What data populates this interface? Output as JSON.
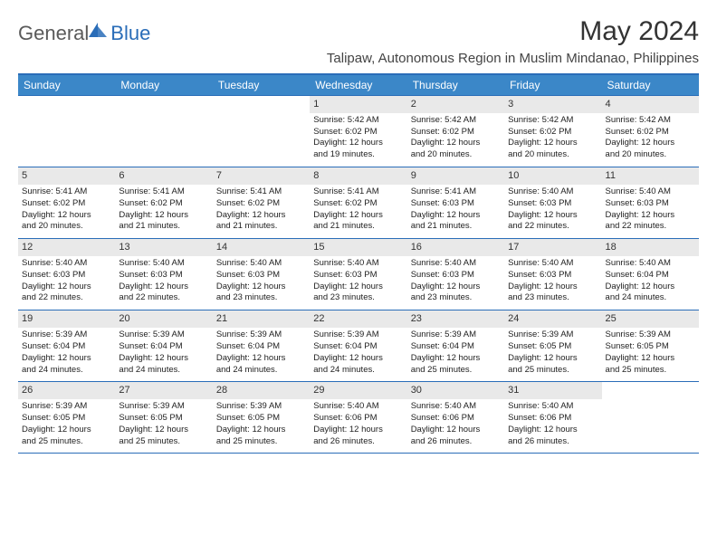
{
  "logo": {
    "general": "General",
    "blue": "Blue",
    "icon_fill": "#2a6db8"
  },
  "title": "May 2024",
  "location": "Talipaw, Autonomous Region in Muslim Mindanao, Philippines",
  "colors": {
    "header_bg": "#3b87c8",
    "border": "#2a6db8",
    "daynum_bg": "#e9e9e9"
  },
  "weekdays": [
    "Sunday",
    "Monday",
    "Tuesday",
    "Wednesday",
    "Thursday",
    "Friday",
    "Saturday"
  ],
  "weeks": [
    [
      {
        "n": "",
        "sr": "",
        "ss": "",
        "dl1": "",
        "dl2": ""
      },
      {
        "n": "",
        "sr": "",
        "ss": "",
        "dl1": "",
        "dl2": ""
      },
      {
        "n": "",
        "sr": "",
        "ss": "",
        "dl1": "",
        "dl2": ""
      },
      {
        "n": "1",
        "sr": "Sunrise: 5:42 AM",
        "ss": "Sunset: 6:02 PM",
        "dl1": "Daylight: 12 hours",
        "dl2": "and 19 minutes."
      },
      {
        "n": "2",
        "sr": "Sunrise: 5:42 AM",
        "ss": "Sunset: 6:02 PM",
        "dl1": "Daylight: 12 hours",
        "dl2": "and 20 minutes."
      },
      {
        "n": "3",
        "sr": "Sunrise: 5:42 AM",
        "ss": "Sunset: 6:02 PM",
        "dl1": "Daylight: 12 hours",
        "dl2": "and 20 minutes."
      },
      {
        "n": "4",
        "sr": "Sunrise: 5:42 AM",
        "ss": "Sunset: 6:02 PM",
        "dl1": "Daylight: 12 hours",
        "dl2": "and 20 minutes."
      }
    ],
    [
      {
        "n": "5",
        "sr": "Sunrise: 5:41 AM",
        "ss": "Sunset: 6:02 PM",
        "dl1": "Daylight: 12 hours",
        "dl2": "and 20 minutes."
      },
      {
        "n": "6",
        "sr": "Sunrise: 5:41 AM",
        "ss": "Sunset: 6:02 PM",
        "dl1": "Daylight: 12 hours",
        "dl2": "and 21 minutes."
      },
      {
        "n": "7",
        "sr": "Sunrise: 5:41 AM",
        "ss": "Sunset: 6:02 PM",
        "dl1": "Daylight: 12 hours",
        "dl2": "and 21 minutes."
      },
      {
        "n": "8",
        "sr": "Sunrise: 5:41 AM",
        "ss": "Sunset: 6:02 PM",
        "dl1": "Daylight: 12 hours",
        "dl2": "and 21 minutes."
      },
      {
        "n": "9",
        "sr": "Sunrise: 5:41 AM",
        "ss": "Sunset: 6:03 PM",
        "dl1": "Daylight: 12 hours",
        "dl2": "and 21 minutes."
      },
      {
        "n": "10",
        "sr": "Sunrise: 5:40 AM",
        "ss": "Sunset: 6:03 PM",
        "dl1": "Daylight: 12 hours",
        "dl2": "and 22 minutes."
      },
      {
        "n": "11",
        "sr": "Sunrise: 5:40 AM",
        "ss": "Sunset: 6:03 PM",
        "dl1": "Daylight: 12 hours",
        "dl2": "and 22 minutes."
      }
    ],
    [
      {
        "n": "12",
        "sr": "Sunrise: 5:40 AM",
        "ss": "Sunset: 6:03 PM",
        "dl1": "Daylight: 12 hours",
        "dl2": "and 22 minutes."
      },
      {
        "n": "13",
        "sr": "Sunrise: 5:40 AM",
        "ss": "Sunset: 6:03 PM",
        "dl1": "Daylight: 12 hours",
        "dl2": "and 22 minutes."
      },
      {
        "n": "14",
        "sr": "Sunrise: 5:40 AM",
        "ss": "Sunset: 6:03 PM",
        "dl1": "Daylight: 12 hours",
        "dl2": "and 23 minutes."
      },
      {
        "n": "15",
        "sr": "Sunrise: 5:40 AM",
        "ss": "Sunset: 6:03 PM",
        "dl1": "Daylight: 12 hours",
        "dl2": "and 23 minutes."
      },
      {
        "n": "16",
        "sr": "Sunrise: 5:40 AM",
        "ss": "Sunset: 6:03 PM",
        "dl1": "Daylight: 12 hours",
        "dl2": "and 23 minutes."
      },
      {
        "n": "17",
        "sr": "Sunrise: 5:40 AM",
        "ss": "Sunset: 6:03 PM",
        "dl1": "Daylight: 12 hours",
        "dl2": "and 23 minutes."
      },
      {
        "n": "18",
        "sr": "Sunrise: 5:40 AM",
        "ss": "Sunset: 6:04 PM",
        "dl1": "Daylight: 12 hours",
        "dl2": "and 24 minutes."
      }
    ],
    [
      {
        "n": "19",
        "sr": "Sunrise: 5:39 AM",
        "ss": "Sunset: 6:04 PM",
        "dl1": "Daylight: 12 hours",
        "dl2": "and 24 minutes."
      },
      {
        "n": "20",
        "sr": "Sunrise: 5:39 AM",
        "ss": "Sunset: 6:04 PM",
        "dl1": "Daylight: 12 hours",
        "dl2": "and 24 minutes."
      },
      {
        "n": "21",
        "sr": "Sunrise: 5:39 AM",
        "ss": "Sunset: 6:04 PM",
        "dl1": "Daylight: 12 hours",
        "dl2": "and 24 minutes."
      },
      {
        "n": "22",
        "sr": "Sunrise: 5:39 AM",
        "ss": "Sunset: 6:04 PM",
        "dl1": "Daylight: 12 hours",
        "dl2": "and 24 minutes."
      },
      {
        "n": "23",
        "sr": "Sunrise: 5:39 AM",
        "ss": "Sunset: 6:04 PM",
        "dl1": "Daylight: 12 hours",
        "dl2": "and 25 minutes."
      },
      {
        "n": "24",
        "sr": "Sunrise: 5:39 AM",
        "ss": "Sunset: 6:05 PM",
        "dl1": "Daylight: 12 hours",
        "dl2": "and 25 minutes."
      },
      {
        "n": "25",
        "sr": "Sunrise: 5:39 AM",
        "ss": "Sunset: 6:05 PM",
        "dl1": "Daylight: 12 hours",
        "dl2": "and 25 minutes."
      }
    ],
    [
      {
        "n": "26",
        "sr": "Sunrise: 5:39 AM",
        "ss": "Sunset: 6:05 PM",
        "dl1": "Daylight: 12 hours",
        "dl2": "and 25 minutes."
      },
      {
        "n": "27",
        "sr": "Sunrise: 5:39 AM",
        "ss": "Sunset: 6:05 PM",
        "dl1": "Daylight: 12 hours",
        "dl2": "and 25 minutes."
      },
      {
        "n": "28",
        "sr": "Sunrise: 5:39 AM",
        "ss": "Sunset: 6:05 PM",
        "dl1": "Daylight: 12 hours",
        "dl2": "and 25 minutes."
      },
      {
        "n": "29",
        "sr": "Sunrise: 5:40 AM",
        "ss": "Sunset: 6:06 PM",
        "dl1": "Daylight: 12 hours",
        "dl2": "and 26 minutes."
      },
      {
        "n": "30",
        "sr": "Sunrise: 5:40 AM",
        "ss": "Sunset: 6:06 PM",
        "dl1": "Daylight: 12 hours",
        "dl2": "and 26 minutes."
      },
      {
        "n": "31",
        "sr": "Sunrise: 5:40 AM",
        "ss": "Sunset: 6:06 PM",
        "dl1": "Daylight: 12 hours",
        "dl2": "and 26 minutes."
      },
      {
        "n": "",
        "sr": "",
        "ss": "",
        "dl1": "",
        "dl2": ""
      }
    ]
  ]
}
